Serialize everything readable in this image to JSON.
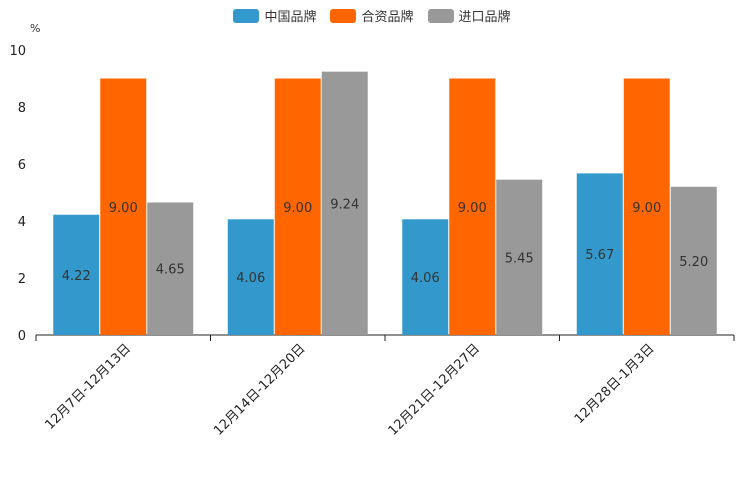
{
  "chart_data": {
    "type": "bar",
    "unit": "%",
    "categories": [
      "12月7日-12月13日",
      "12月14日-12月20日",
      "12月21日-12月27日",
      "12月28日-1月3日"
    ],
    "series": [
      {
        "name": "中国品牌",
        "color": "#3399cc",
        "values": [
          4.22,
          4.06,
          4.06,
          5.67
        ],
        "labels": [
          "4.22",
          "4.06",
          "4.06",
          "5.67"
        ]
      },
      {
        "name": "合资品牌",
        "color": "#ff6600",
        "values": [
          9.0,
          9.0,
          9.0,
          9.0
        ],
        "labels": [
          "9.00",
          "9.00",
          "9.00",
          "9.00"
        ]
      },
      {
        "name": "进口品牌",
        "color": "#999999",
        "values": [
          4.65,
          9.24,
          5.45,
          5.2
        ],
        "labels": [
          "4.65",
          "9.24",
          "5.45",
          "5.20"
        ]
      }
    ],
    "ylim": [
      0,
      10
    ],
    "yticks": [
      "0",
      "2",
      "4",
      "6",
      "8",
      "10"
    ],
    "legend_position": "top-center"
  }
}
